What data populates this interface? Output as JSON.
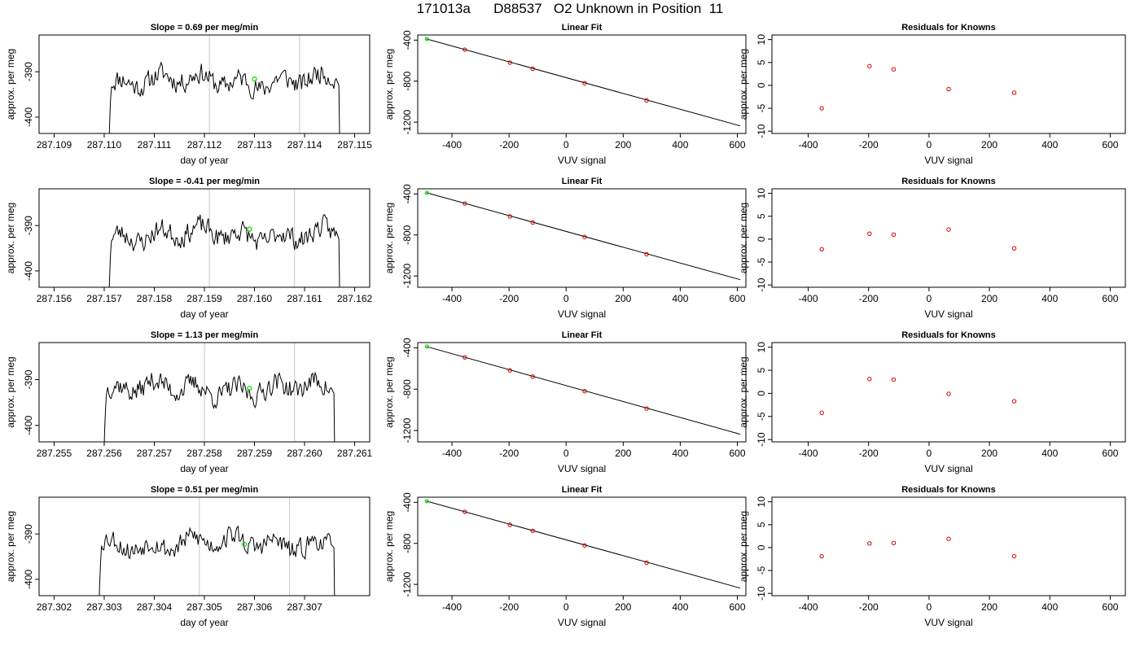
{
  "page_title": "171013a      D88537   O2 Unknown in Position  11",
  "chart_data": [
    {
      "type": "line",
      "title": "Slope =  0.69  per meg/min",
      "xlabel": "day of year",
      "ylabel": "approx. per meg",
      "xlim": [
        287.1087,
        287.1153
      ],
      "ylim": [
        -403.6,
        -381.9
      ],
      "xticks": [
        "287.109",
        "287.110",
        "287.111",
        "287.112",
        "287.113",
        "287.114",
        "287.115"
      ],
      "xtick_values": [
        287.109,
        287.11,
        287.111,
        287.112,
        287.113,
        287.114,
        287.115
      ],
      "yticks": [
        "-390",
        "-400"
      ],
      "ytick_values": [
        -390,
        -400
      ],
      "vlines": [
        287.1121,
        287.1139
      ],
      "trace": {
        "start": 287.1101,
        "end": 287.1147,
        "base": -392,
        "seed": 11
      },
      "marker": {
        "x": 287.113,
        "y": -391.6
      },
      "line_color": "#000000",
      "vline_color": "#c8c8c8",
      "marker_color": "#00dd00"
    },
    {
      "type": "line",
      "title": "Linear Fit",
      "xlabel": "VUV signal",
      "ylabel": "approx. per meg",
      "xlim": [
        -520,
        630
      ],
      "ylim": [
        -1310,
        -350
      ],
      "xticks": [
        "-400",
        "-200",
        "0",
        "200",
        "400",
        "600"
      ],
      "xtick_values": [
        -400,
        -200,
        0,
        200,
        400,
        600
      ],
      "yticks": [
        "-400",
        "-800",
        "-1200"
      ],
      "ytick_values": [
        -400,
        -800,
        -1200
      ],
      "fit_line": [
        [
          -490,
          -388
        ],
        [
          610,
          -1236
        ]
      ],
      "points": [
        [
          -355,
          -493
        ],
        [
          -197,
          -619
        ],
        [
          -117,
          -679
        ],
        [
          65,
          -820
        ],
        [
          282,
          -988
        ]
      ],
      "unknown": [
        -488,
        -388
      ],
      "point_color": "#cc0000",
      "marker_color": "#00dd00"
    },
    {
      "type": "scatter",
      "title": "Residuals for Knowns",
      "xlabel": "VUV signal",
      "ylabel": "approx. per meg",
      "xlim": [
        -520,
        650
      ],
      "ylim": [
        -10.5,
        11
      ],
      "xticks": [
        "-400",
        "-200",
        "0",
        "200",
        "400",
        "600"
      ],
      "xtick_values": [
        -400,
        -200,
        0,
        200,
        400,
        600
      ],
      "yticks": [
        "10",
        "5",
        "0",
        "-5",
        "-10"
      ],
      "ytick_values": [
        10,
        5,
        0,
        -5,
        -10
      ],
      "points": [
        [
          -355,
          -5.0
        ],
        [
          -197,
          4.2
        ],
        [
          -117,
          3.5
        ],
        [
          65,
          -0.8
        ],
        [
          282,
          -1.6
        ]
      ],
      "point_color": "#cc0000"
    },
    {
      "type": "line",
      "title": "Slope =  -0.41  per meg/min",
      "xlabel": "day of year",
      "ylabel": "approx. per meg",
      "xlim": [
        287.1557,
        287.1623
      ],
      "ylim": [
        -403.6,
        -381.9
      ],
      "xticks": [
        "287.156",
        "287.157",
        "287.158",
        "287.159",
        "287.160",
        "287.161",
        "287.162"
      ],
      "xtick_values": [
        287.156,
        287.157,
        287.158,
        287.159,
        287.16,
        287.161,
        287.162
      ],
      "yticks": [
        "-390",
        "-400"
      ],
      "ytick_values": [
        -390,
        -400
      ],
      "vlines": [
        287.1591,
        287.1608
      ],
      "trace": {
        "start": 287.1571,
        "end": 287.1617,
        "base": -392,
        "seed": 23
      },
      "marker": {
        "x": 287.1599,
        "y": -390.8
      },
      "line_color": "#000000",
      "vline_color": "#c8c8c8",
      "marker_color": "#00dd00"
    },
    {
      "type": "line",
      "title": "Linear Fit",
      "xlabel": "VUV signal",
      "ylabel": "approx. per meg",
      "xlim": [
        -520,
        630
      ],
      "ylim": [
        -1310,
        -350
      ],
      "xticks": [
        "-400",
        "-200",
        "0",
        "200",
        "400",
        "600"
      ],
      "xtick_values": [
        -400,
        -200,
        0,
        200,
        400,
        600
      ],
      "yticks": [
        "-400",
        "-800",
        "-1200"
      ],
      "ytick_values": [
        -400,
        -800,
        -1200
      ],
      "fit_line": [
        [
          -490,
          -388
        ],
        [
          610,
          -1236
        ]
      ],
      "points": [
        [
          -355,
          -493
        ],
        [
          -197,
          -619
        ],
        [
          -117,
          -679
        ],
        [
          65,
          -820
        ],
        [
          282,
          -988
        ]
      ],
      "unknown": [
        -488,
        -388
      ],
      "point_color": "#cc0000",
      "marker_color": "#00dd00"
    },
    {
      "type": "scatter",
      "title": "Residuals for Knowns",
      "xlabel": "VUV signal",
      "ylabel": "approx. per meg",
      "xlim": [
        -520,
        650
      ],
      "ylim": [
        -10.5,
        11
      ],
      "xticks": [
        "-400",
        "-200",
        "0",
        "200",
        "400",
        "600"
      ],
      "xtick_values": [
        -400,
        -200,
        0,
        200,
        400,
        600
      ],
      "yticks": [
        "10",
        "5",
        "0",
        "-5",
        "-10"
      ],
      "ytick_values": [
        10,
        5,
        0,
        -5,
        -10
      ],
      "points": [
        [
          -355,
          -2.2
        ],
        [
          -197,
          1.2
        ],
        [
          -117,
          1.0
        ],
        [
          65,
          2.1
        ],
        [
          282,
          -2.0
        ]
      ],
      "point_color": "#cc0000"
    },
    {
      "type": "line",
      "title": "Slope =  1.13  per meg/min",
      "xlabel": "day of year",
      "ylabel": "approx. per meg",
      "xlim": [
        287.2547,
        287.2613
      ],
      "ylim": [
        -403.6,
        -381.9
      ],
      "xticks": [
        "287.255",
        "287.256",
        "287.257",
        "287.258",
        "287.259",
        "287.260",
        "287.261"
      ],
      "xtick_values": [
        287.255,
        287.256,
        287.257,
        287.258,
        287.259,
        287.26,
        287.261
      ],
      "yticks": [
        "-390",
        "-400"
      ],
      "ytick_values": [
        -390,
        -400
      ],
      "vlines": [
        287.258,
        287.2598
      ],
      "trace": {
        "start": 287.256,
        "end": 287.2606,
        "base": -392,
        "seed": 37
      },
      "marker": {
        "x": 287.2589,
        "y": -391.9
      },
      "line_color": "#000000",
      "vline_color": "#c8c8c8",
      "marker_color": "#00dd00"
    },
    {
      "type": "line",
      "title": "Linear Fit",
      "xlabel": "VUV signal",
      "ylabel": "approx. per meg",
      "xlim": [
        -520,
        630
      ],
      "ylim": [
        -1310,
        -350
      ],
      "xticks": [
        "-400",
        "-200",
        "0",
        "200",
        "400",
        "600"
      ],
      "xtick_values": [
        -400,
        -200,
        0,
        200,
        400,
        600
      ],
      "yticks": [
        "-400",
        "-800",
        "-1200"
      ],
      "ytick_values": [
        -400,
        -800,
        -1200
      ],
      "fit_line": [
        [
          -490,
          -388
        ],
        [
          610,
          -1236
        ]
      ],
      "points": [
        [
          -355,
          -493
        ],
        [
          -197,
          -619
        ],
        [
          -117,
          -679
        ],
        [
          65,
          -820
        ],
        [
          282,
          -988
        ]
      ],
      "unknown": [
        -488,
        -388
      ],
      "point_color": "#cc0000",
      "marker_color": "#00dd00"
    },
    {
      "type": "scatter",
      "title": "Residuals for Knowns",
      "xlabel": "VUV signal",
      "ylabel": "approx. per meg",
      "xlim": [
        -520,
        650
      ],
      "ylim": [
        -10.5,
        11
      ],
      "xticks": [
        "-400",
        "-200",
        "0",
        "200",
        "400",
        "600"
      ],
      "xtick_values": [
        -400,
        -200,
        0,
        200,
        400,
        600
      ],
      "yticks": [
        "10",
        "5",
        "0",
        "-5",
        "-10"
      ],
      "ytick_values": [
        10,
        5,
        0,
        -5,
        -10
      ],
      "points": [
        [
          -355,
          -4.2
        ],
        [
          -197,
          3.1
        ],
        [
          -117,
          3.0
        ],
        [
          65,
          -0.1
        ],
        [
          282,
          -1.7
        ]
      ],
      "point_color": "#cc0000"
    },
    {
      "type": "line",
      "title": "Slope =  0.51  per meg/min",
      "xlabel": "day of year",
      "ylabel": "approx. per meg",
      "xlim": [
        287.3017,
        287.3083
      ],
      "ylim": [
        -403.6,
        -381.9
      ],
      "xticks": [
        "287.302",
        "287.303",
        "287.304",
        "287.305",
        "287.306",
        "287.307"
      ],
      "xtick_values": [
        287.302,
        287.303,
        287.304,
        287.305,
        287.306,
        287.307
      ],
      "yticks": [
        "-390",
        "-400"
      ],
      "ytick_values": [
        -390,
        -400
      ],
      "vlines": [
        287.3049,
        287.3067
      ],
      "trace": {
        "start": 287.3029,
        "end": 287.3076,
        "base": -392,
        "seed": 53
      },
      "marker": {
        "x": 287.3058,
        "y": -392.3
      },
      "line_color": "#000000",
      "vline_color": "#c8c8c8",
      "marker_color": "#00dd00"
    },
    {
      "type": "line",
      "title": "Linear Fit",
      "xlabel": "VUV signal",
      "ylabel": "approx. per meg",
      "xlim": [
        -520,
        630
      ],
      "ylim": [
        -1310,
        -350
      ],
      "xticks": [
        "-400",
        "-200",
        "0",
        "200",
        "400",
        "600"
      ],
      "xtick_values": [
        -400,
        -200,
        0,
        200,
        400,
        600
      ],
      "yticks": [
        "-400",
        "-800",
        "-1200"
      ],
      "ytick_values": [
        -400,
        -800,
        -1200
      ],
      "fit_line": [
        [
          -490,
          -388
        ],
        [
          610,
          -1236
        ]
      ],
      "points": [
        [
          -355,
          -493
        ],
        [
          -197,
          -619
        ],
        [
          -117,
          -679
        ],
        [
          65,
          -820
        ],
        [
          282,
          -988
        ]
      ],
      "unknown": [
        -488,
        -388
      ],
      "point_color": "#cc0000",
      "marker_color": "#00dd00"
    },
    {
      "type": "scatter",
      "title": "Residuals for Knowns",
      "xlabel": "VUV signal",
      "ylabel": "approx. per meg",
      "xlim": [
        -520,
        650
      ],
      "ylim": [
        -10.5,
        11
      ],
      "xticks": [
        "-400",
        "-200",
        "0",
        "200",
        "400",
        "600"
      ],
      "xtick_values": [
        -400,
        -200,
        0,
        200,
        400,
        600
      ],
      "yticks": [
        "10",
        "5",
        "0",
        "-5",
        "-10"
      ],
      "ytick_values": [
        10,
        5,
        0,
        -5,
        -10
      ],
      "points": [
        [
          -355,
          -1.9
        ],
        [
          -197,
          0.9
        ],
        [
          -117,
          1.0
        ],
        [
          65,
          1.9
        ],
        [
          282,
          -1.9
        ]
      ],
      "point_color": "#cc0000"
    }
  ]
}
